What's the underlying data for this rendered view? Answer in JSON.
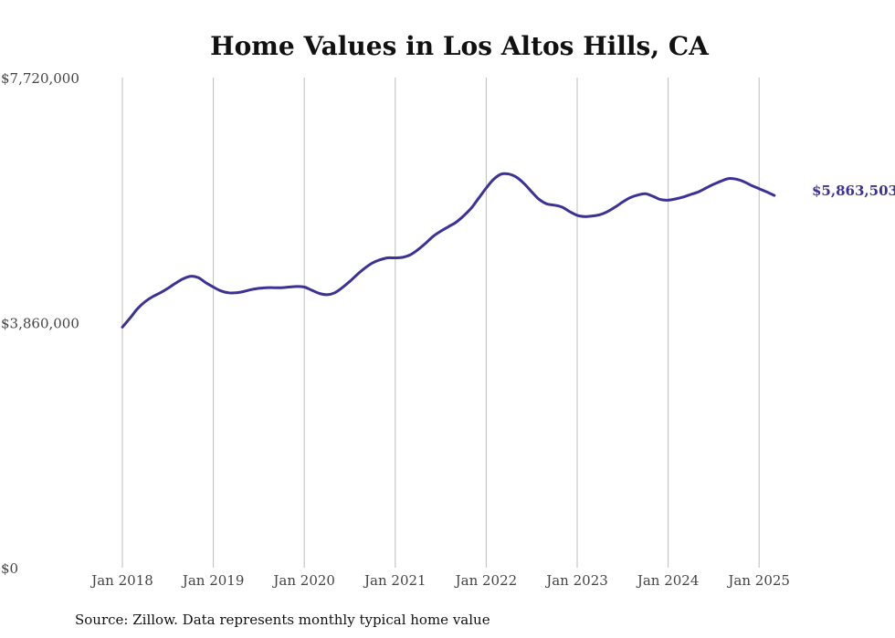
{
  "chart_data": {
    "type": "line",
    "title": "Home Values in Los Altos Hills, CA",
    "xlabel": "",
    "ylabel": "",
    "x_ticks": [
      "Jan 2018",
      "Jan 2019",
      "Jan 2020",
      "Jan 2021",
      "Jan 2022",
      "Jan 2023",
      "Jan 2024",
      "Jan 2025"
    ],
    "y_ticks": [
      "$0",
      "$3,860,000",
      "$7,720,000"
    ],
    "y_tick_values": [
      0,
      3860000,
      7720000
    ],
    "ylim": [
      0,
      7720000
    ],
    "xlim": [
      "2018-01",
      "2025-12"
    ],
    "grid": "vertical",
    "series": [
      {
        "color": "#3b3196",
        "points": [
          [
            "2018-01",
            3790000
          ],
          [
            "2018-02",
            3930000
          ],
          [
            "2018-03",
            4080000
          ],
          [
            "2018-04",
            4190000
          ],
          [
            "2018-05",
            4270000
          ],
          [
            "2018-06",
            4330000
          ],
          [
            "2018-07",
            4400000
          ],
          [
            "2018-08",
            4480000
          ],
          [
            "2018-09",
            4550000
          ],
          [
            "2018-10",
            4590000
          ],
          [
            "2018-11",
            4570000
          ],
          [
            "2018-12",
            4490000
          ],
          [
            "2019-01",
            4420000
          ],
          [
            "2019-02",
            4360000
          ],
          [
            "2019-03",
            4330000
          ],
          [
            "2019-04",
            4330000
          ],
          [
            "2019-05",
            4350000
          ],
          [
            "2019-06",
            4380000
          ],
          [
            "2019-07",
            4400000
          ],
          [
            "2019-08",
            4410000
          ],
          [
            "2019-09",
            4410000
          ],
          [
            "2019-10",
            4410000
          ],
          [
            "2019-11",
            4420000
          ],
          [
            "2019-12",
            4430000
          ],
          [
            "2020-01",
            4420000
          ],
          [
            "2020-02",
            4370000
          ],
          [
            "2020-03",
            4320000
          ],
          [
            "2020-04",
            4300000
          ],
          [
            "2020-05",
            4330000
          ],
          [
            "2020-06",
            4410000
          ],
          [
            "2020-07",
            4510000
          ],
          [
            "2020-08",
            4620000
          ],
          [
            "2020-09",
            4720000
          ],
          [
            "2020-10",
            4800000
          ],
          [
            "2020-11",
            4850000
          ],
          [
            "2020-12",
            4880000
          ],
          [
            "2021-01",
            4880000
          ],
          [
            "2021-02",
            4890000
          ],
          [
            "2021-03",
            4930000
          ],
          [
            "2021-04",
            5010000
          ],
          [
            "2021-05",
            5110000
          ],
          [
            "2021-06",
            5220000
          ],
          [
            "2021-07",
            5300000
          ],
          [
            "2021-08",
            5370000
          ],
          [
            "2021-09",
            5440000
          ],
          [
            "2021-10",
            5540000
          ],
          [
            "2021-11",
            5660000
          ],
          [
            "2021-12",
            5820000
          ],
          [
            "2022-01",
            5980000
          ],
          [
            "2022-02",
            6120000
          ],
          [
            "2022-03",
            6200000
          ],
          [
            "2022-04",
            6200000
          ],
          [
            "2022-05",
            6150000
          ],
          [
            "2022-06",
            6050000
          ],
          [
            "2022-07",
            5920000
          ],
          [
            "2022-08",
            5800000
          ],
          [
            "2022-09",
            5730000
          ],
          [
            "2022-10",
            5710000
          ],
          [
            "2022-11",
            5680000
          ],
          [
            "2022-12",
            5610000
          ],
          [
            "2023-01",
            5550000
          ],
          [
            "2023-02",
            5530000
          ],
          [
            "2023-03",
            5540000
          ],
          [
            "2023-04",
            5560000
          ],
          [
            "2023-05",
            5610000
          ],
          [
            "2023-06",
            5680000
          ],
          [
            "2023-07",
            5760000
          ],
          [
            "2023-08",
            5830000
          ],
          [
            "2023-09",
            5870000
          ],
          [
            "2023-10",
            5890000
          ],
          [
            "2023-11",
            5850000
          ],
          [
            "2023-12",
            5800000
          ],
          [
            "2024-01",
            5790000
          ],
          [
            "2024-02",
            5810000
          ],
          [
            "2024-03",
            5840000
          ],
          [
            "2024-04",
            5880000
          ],
          [
            "2024-05",
            5920000
          ],
          [
            "2024-06",
            5980000
          ],
          [
            "2024-07",
            6040000
          ],
          [
            "2024-08",
            6090000
          ],
          [
            "2024-09",
            6130000
          ],
          [
            "2024-10",
            6120000
          ],
          [
            "2024-11",
            6080000
          ],
          [
            "2024-12",
            6020000
          ],
          [
            "2025-01",
            5970000
          ],
          [
            "2025-02",
            5920000
          ],
          [
            "2025-03",
            5863503
          ]
        ]
      }
    ],
    "end_label": "$5,863,503"
  },
  "source_note": "Source: Zillow. Data represents monthly typical home value"
}
